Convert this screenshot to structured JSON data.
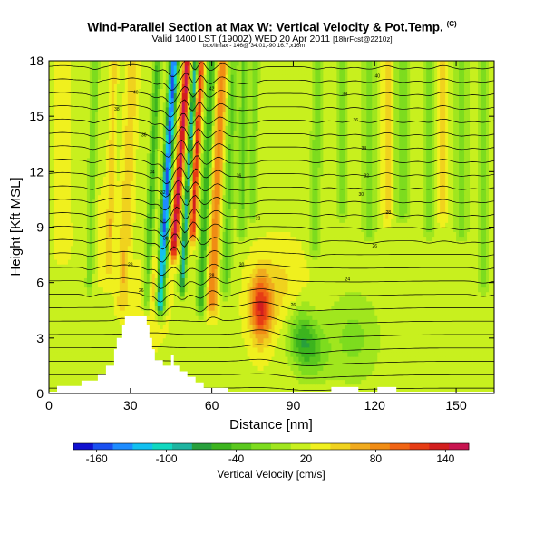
{
  "chart_data": {
    "type": "heatmap",
    "title": "Wind-Parallel Section at Max W: Vertical Velocity & Pot.Temp.",
    "title_mark": "(C)",
    "subtitle": "Valid 1400 LST (1900Z) WED 20 Apr 2011",
    "subtitle_tag": "[18hrFcst@2210z]",
    "subtitle2": "box/limax - 146@ 34.01,-90 16.7,x16m",
    "xlabel": "Distance [nm]",
    "ylabel": "Height [Kft MSL]",
    "xlim": [
      0,
      164
    ],
    "ylim": [
      0,
      18
    ],
    "x_ticks": [
      0,
      30,
      60,
      90,
      120,
      150
    ],
    "y_ticks": [
      0,
      3,
      6,
      9,
      12,
      15,
      18
    ],
    "colorbar": {
      "label": "Vertical Velocity [cm/s]",
      "ticks": [
        -160,
        -100,
        -40,
        20,
        80,
        140
      ],
      "range": [
        -180,
        160
      ],
      "colors": [
        "#1010d0",
        "#1a50f0",
        "#1e8cff",
        "#12c0f0",
        "#10d8c0",
        "#1eb4a0",
        "#28a03c",
        "#3cb41e",
        "#5ac81e",
        "#7ddc1e",
        "#a0e61e",
        "#c8f01e",
        "#f0f01e",
        "#f0d21e",
        "#f0aa1e",
        "#f08c14",
        "#f06414",
        "#e63c14",
        "#d21e1e",
        "#c81450"
      ]
    },
    "background_value": 20,
    "velocity_features": [
      {
        "x": 78,
        "z": 4.6,
        "sx": 4,
        "sz": 1.8,
        "value": 120
      },
      {
        "x": 85,
        "z": 5.8,
        "sx": 9,
        "sz": 2.2,
        "value": 45
      },
      {
        "x": 93,
        "z": 3.2,
        "sx": 5,
        "sz": 1.6,
        "value": -40
      },
      {
        "x": 97,
        "z": 2.2,
        "sx": 6,
        "sz": 1.5,
        "value": -25
      },
      {
        "x": 112,
        "z": 3.0,
        "sx": 10,
        "sz": 2.5,
        "value": -15
      },
      {
        "x": 40,
        "z": 6.0,
        "sx": 4,
        "sz": 2.0,
        "value": 60
      },
      {
        "x": 20,
        "z": 8.5,
        "sx": 8,
        "sz": 3.0,
        "value": 30
      },
      {
        "x": 35,
        "z": 4.5,
        "sx": 5,
        "sz": 2.0,
        "value": 40
      }
    ],
    "velocity_bands": [
      {
        "x0": 41,
        "x1": 46,
        "z0": 5,
        "z1": 18,
        "width": 1.6,
        "value": -150
      },
      {
        "x0": 46,
        "x1": 51,
        "z0": 8,
        "z1": 18,
        "width": 1.4,
        "value": 150
      },
      {
        "x0": 49,
        "x1": 54,
        "z0": 6,
        "z1": 18,
        "width": 1.2,
        "value": -90
      },
      {
        "x0": 53,
        "x1": 56,
        "z0": 9,
        "z1": 18,
        "width": 1.2,
        "value": 130
      },
      {
        "x0": 56,
        "x1": 60,
        "z0": 5,
        "z1": 18,
        "width": 1.6,
        "value": -60
      },
      {
        "x0": 60,
        "x1": 64,
        "z0": 5,
        "z1": 18,
        "width": 2.0,
        "value": 90
      },
      {
        "x0": 36,
        "x1": 40,
        "z0": 5,
        "z1": 18,
        "width": 1.5,
        "value": -50
      },
      {
        "x0": 27,
        "x1": 31,
        "z0": 5,
        "z1": 18,
        "width": 2.0,
        "value": 55
      },
      {
        "x0": 65,
        "x1": 68,
        "z0": 6,
        "z1": 18,
        "width": 2.0,
        "value": -30
      },
      {
        "x0": 15,
        "x1": 17,
        "z0": 6,
        "z1": 18,
        "width": 1.5,
        "value": -25
      },
      {
        "x0": 22,
        "x1": 24,
        "z0": 7,
        "z1": 18,
        "width": 1.2,
        "value": 50
      },
      {
        "x0": 71,
        "x1": 72,
        "z0": 9,
        "z1": 18,
        "width": 1.5,
        "value": -30
      },
      {
        "x0": 75,
        "x1": 76,
        "z0": 10,
        "z1": 18,
        "width": 1.5,
        "value": -25
      },
      {
        "x0": 98,
        "x1": 99,
        "z0": 8,
        "z1": 18,
        "width": 2.0,
        "value": -20
      },
      {
        "x0": 108,
        "x1": 108,
        "z0": 10,
        "z1": 18,
        "width": 2.0,
        "value": -15
      },
      {
        "x0": 118,
        "x1": 118,
        "z0": 9,
        "z1": 18,
        "width": 2.5,
        "value": -20
      },
      {
        "x0": 130,
        "x1": 130,
        "z0": 10,
        "z1": 18,
        "width": 3.0,
        "value": -20
      },
      {
        "x0": 140,
        "x1": 140,
        "z0": 9,
        "z1": 18,
        "width": 2.0,
        "value": -18
      },
      {
        "x0": 152,
        "x1": 152,
        "z0": 9,
        "z1": 18,
        "width": 2.5,
        "value": -20
      },
      {
        "x0": 5,
        "x1": 5,
        "z0": 8,
        "z1": 18,
        "width": 2.5,
        "value": 40
      },
      {
        "x0": 125,
        "x1": 125,
        "z0": 10,
        "z1": 18,
        "width": 2.0,
        "value": 50
      },
      {
        "x0": 145,
        "x1": 145,
        "z0": 10,
        "z1": 18,
        "width": 2.0,
        "value": 45
      },
      {
        "x0": 160,
        "x1": 160,
        "z0": 6,
        "z1": 18,
        "width": 2.0,
        "value": -15
      }
    ],
    "terrain": [
      {
        "x": 0,
        "z": 0.1
      },
      {
        "x": 3,
        "z": 0.1
      },
      {
        "x": 3,
        "z": 0.4
      },
      {
        "x": 12,
        "z": 0.4
      },
      {
        "x": 12,
        "z": 0.7
      },
      {
        "x": 18,
        "z": 0.7
      },
      {
        "x": 18,
        "z": 1.0
      },
      {
        "x": 21,
        "z": 1.0
      },
      {
        "x": 21,
        "z": 1.5
      },
      {
        "x": 24,
        "z": 1.5
      },
      {
        "x": 24,
        "z": 2.4
      },
      {
        "x": 25,
        "z": 2.4
      },
      {
        "x": 25,
        "z": 3.0
      },
      {
        "x": 27,
        "z": 3.0
      },
      {
        "x": 27,
        "z": 3.7
      },
      {
        "x": 28,
        "z": 3.7
      },
      {
        "x": 28,
        "z": 4.2
      },
      {
        "x": 36,
        "z": 4.2
      },
      {
        "x": 36,
        "z": 3.7
      },
      {
        "x": 37,
        "z": 3.7
      },
      {
        "x": 37,
        "z": 3.0
      },
      {
        "x": 38,
        "z": 3.0
      },
      {
        "x": 38,
        "z": 2.4
      },
      {
        "x": 39,
        "z": 2.4
      },
      {
        "x": 39,
        "z": 1.8
      },
      {
        "x": 42,
        "z": 1.8
      },
      {
        "x": 42,
        "z": 1.5
      },
      {
        "x": 45,
        "z": 1.5
      },
      {
        "x": 45,
        "z": 2.1
      },
      {
        "x": 46,
        "z": 2.1
      },
      {
        "x": 46,
        "z": 1.5
      },
      {
        "x": 48,
        "z": 1.5
      },
      {
        "x": 48,
        "z": 1.2
      },
      {
        "x": 51,
        "z": 1.2
      },
      {
        "x": 51,
        "z": 0.9
      },
      {
        "x": 54,
        "z": 0.9
      },
      {
        "x": 54,
        "z": 0.6
      },
      {
        "x": 57,
        "z": 0.6
      },
      {
        "x": 57,
        "z": 0.3
      },
      {
        "x": 66,
        "z": 0.3
      },
      {
        "x": 66,
        "z": 0.1
      },
      {
        "x": 104,
        "z": 0.1
      },
      {
        "x": 104,
        "z": 0.35
      },
      {
        "x": 114,
        "z": 0.35
      },
      {
        "x": 114,
        "z": 0.1
      },
      {
        "x": 121,
        "z": 0.1
      },
      {
        "x": 121,
        "z": 0.35
      },
      {
        "x": 128,
        "z": 0.35
      },
      {
        "x": 128,
        "z": 0.1
      },
      {
        "x": 164,
        "z": 0.1
      }
    ],
    "theta_levels": [
      18,
      19,
      20,
      21,
      22,
      23,
      24,
      25,
      26,
      27,
      28,
      29,
      30,
      31,
      32,
      33,
      34,
      35,
      36,
      37,
      38,
      39,
      40,
      41,
      42
    ],
    "theta_labels": [
      {
        "x": 32,
        "z": 16.3,
        "text": "40"
      },
      {
        "x": 25,
        "z": 15.4,
        "text": "38"
      },
      {
        "x": 35,
        "z": 14.0,
        "text": "36"
      },
      {
        "x": 38,
        "z": 12.0,
        "text": "34"
      },
      {
        "x": 42,
        "z": 10.9,
        "text": "32"
      },
      {
        "x": 43,
        "z": 8.4,
        "text": "30"
      },
      {
        "x": 30,
        "z": 7.0,
        "text": "28"
      },
      {
        "x": 34,
        "z": 5.6,
        "text": "26"
      },
      {
        "x": 60,
        "z": 16.5,
        "text": "42"
      },
      {
        "x": 70,
        "z": 11.8,
        "text": "36"
      },
      {
        "x": 77,
        "z": 9.5,
        "text": "32"
      },
      {
        "x": 71,
        "z": 7.0,
        "text": "30"
      },
      {
        "x": 60,
        "z": 6.4,
        "text": "28"
      },
      {
        "x": 90,
        "z": 4.8,
        "text": "26"
      },
      {
        "x": 110,
        "z": 6.2,
        "text": "24"
      },
      {
        "x": 120,
        "z": 8.0,
        "text": "26"
      },
      {
        "x": 125,
        "z": 9.8,
        "text": "28"
      },
      {
        "x": 115,
        "z": 10.8,
        "text": "30"
      },
      {
        "x": 117,
        "z": 11.8,
        "text": "32"
      },
      {
        "x": 116,
        "z": 13.3,
        "text": "34"
      },
      {
        "x": 113,
        "z": 14.8,
        "text": "36"
      },
      {
        "x": 109,
        "z": 16.2,
        "text": "38"
      },
      {
        "x": 121,
        "z": 17.2,
        "text": "40"
      }
    ]
  }
}
